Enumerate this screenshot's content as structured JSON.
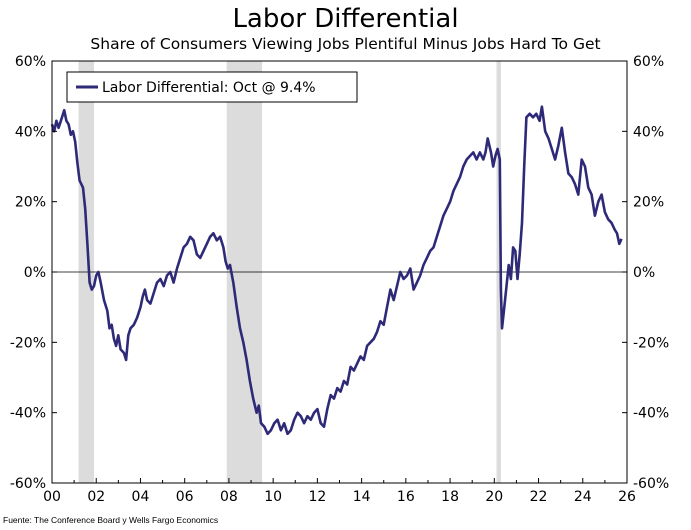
{
  "chart_data": {
    "type": "line",
    "title": "Labor Differential",
    "subtitle": "Share of Consumers Viewing Jobs Plentiful Minus Jobs Hard To Get",
    "x_tick_labels": [
      "00",
      "02",
      "04",
      "06",
      "08",
      "10",
      "12",
      "14",
      "16",
      "18",
      "20",
      "22",
      "24",
      "26"
    ],
    "x_range": [
      2000,
      2026
    ],
    "ylim": [
      -60,
      60
    ],
    "y_ticks": [
      60,
      40,
      20,
      0,
      -20,
      -40,
      -60
    ],
    "y_tick_labels": [
      "60%",
      "40%",
      "20%",
      "0%",
      "-20%",
      "-40%",
      "-60%"
    ],
    "recessions": [
      [
        2001.2,
        2001.9
      ],
      [
        2007.9,
        2009.5
      ],
      [
        2020.1,
        2020.3
      ]
    ],
    "series": [
      {
        "name": "Labor Differential: Oct @ 9.4%",
        "color": "#2e2a78",
        "points": [
          [
            2000.0,
            42
          ],
          [
            2000.1,
            40
          ],
          [
            2000.2,
            43
          ],
          [
            2000.3,
            41
          ],
          [
            2000.45,
            44
          ],
          [
            2000.55,
            46
          ],
          [
            2000.65,
            43
          ],
          [
            2000.75,
            42
          ],
          [
            2000.85,
            39
          ],
          [
            2000.95,
            40
          ],
          [
            2001.05,
            37
          ],
          [
            2001.15,
            31
          ],
          [
            2001.25,
            26
          ],
          [
            2001.4,
            24
          ],
          [
            2001.5,
            18
          ],
          [
            2001.6,
            8
          ],
          [
            2001.7,
            -3
          ],
          [
            2001.8,
            -5
          ],
          [
            2001.9,
            -4
          ],
          [
            2002.0,
            -1
          ],
          [
            2002.1,
            0
          ],
          [
            2002.2,
            -3
          ],
          [
            2002.35,
            -8
          ],
          [
            2002.5,
            -11
          ],
          [
            2002.6,
            -16
          ],
          [
            2002.7,
            -15
          ],
          [
            2002.8,
            -19
          ],
          [
            2002.9,
            -21
          ],
          [
            2003.0,
            -18
          ],
          [
            2003.1,
            -22
          ],
          [
            2003.25,
            -23
          ],
          [
            2003.35,
            -25
          ],
          [
            2003.45,
            -18
          ],
          [
            2003.55,
            -16
          ],
          [
            2003.7,
            -15
          ],
          [
            2003.85,
            -13
          ],
          [
            2004.0,
            -10
          ],
          [
            2004.1,
            -7
          ],
          [
            2004.2,
            -5
          ],
          [
            2004.3,
            -8
          ],
          [
            2004.45,
            -9
          ],
          [
            2004.6,
            -6
          ],
          [
            2004.75,
            -3
          ],
          [
            2004.9,
            -2
          ],
          [
            2005.05,
            -4
          ],
          [
            2005.2,
            -1
          ],
          [
            2005.35,
            0
          ],
          [
            2005.5,
            -3
          ],
          [
            2005.65,
            1
          ],
          [
            2005.8,
            4
          ],
          [
            2005.95,
            7
          ],
          [
            2006.1,
            8
          ],
          [
            2006.25,
            10
          ],
          [
            2006.4,
            9
          ],
          [
            2006.55,
            5
          ],
          [
            2006.7,
            4
          ],
          [
            2006.85,
            6
          ],
          [
            2007.0,
            8
          ],
          [
            2007.15,
            10
          ],
          [
            2007.3,
            11
          ],
          [
            2007.45,
            9
          ],
          [
            2007.6,
            10
          ],
          [
            2007.75,
            7
          ],
          [
            2007.85,
            3
          ],
          [
            2007.95,
            1
          ],
          [
            2008.05,
            2
          ],
          [
            2008.2,
            -3
          ],
          [
            2008.35,
            -10
          ],
          [
            2008.5,
            -16
          ],
          [
            2008.65,
            -20
          ],
          [
            2008.8,
            -25
          ],
          [
            2008.95,
            -31
          ],
          [
            2009.1,
            -36
          ],
          [
            2009.25,
            -40
          ],
          [
            2009.35,
            -38
          ],
          [
            2009.45,
            -43
          ],
          [
            2009.6,
            -44
          ],
          [
            2009.75,
            -46
          ],
          [
            2009.9,
            -45
          ],
          [
            2010.05,
            -43
          ],
          [
            2010.2,
            -42
          ],
          [
            2010.35,
            -45
          ],
          [
            2010.5,
            -43
          ],
          [
            2010.65,
            -46
          ],
          [
            2010.8,
            -45
          ],
          [
            2010.95,
            -42
          ],
          [
            2011.1,
            -40
          ],
          [
            2011.25,
            -41
          ],
          [
            2011.4,
            -43
          ],
          [
            2011.55,
            -41
          ],
          [
            2011.7,
            -42
          ],
          [
            2011.85,
            -40
          ],
          [
            2012.0,
            -39
          ],
          [
            2012.15,
            -43
          ],
          [
            2012.3,
            -44
          ],
          [
            2012.45,
            -39
          ],
          [
            2012.6,
            -35
          ],
          [
            2012.75,
            -36
          ],
          [
            2012.9,
            -33
          ],
          [
            2013.05,
            -34
          ],
          [
            2013.2,
            -31
          ],
          [
            2013.35,
            -32
          ],
          [
            2013.5,
            -27
          ],
          [
            2013.65,
            -28
          ],
          [
            2013.8,
            -26
          ],
          [
            2013.95,
            -24
          ],
          [
            2014.1,
            -25
          ],
          [
            2014.25,
            -21
          ],
          [
            2014.4,
            -20
          ],
          [
            2014.55,
            -19
          ],
          [
            2014.7,
            -17
          ],
          [
            2014.85,
            -14
          ],
          [
            2015.0,
            -15
          ],
          [
            2015.15,
            -10
          ],
          [
            2015.3,
            -5
          ],
          [
            2015.45,
            -8
          ],
          [
            2015.6,
            -4
          ],
          [
            2015.75,
            0
          ],
          [
            2015.9,
            -2
          ],
          [
            2016.05,
            -1
          ],
          [
            2016.2,
            1
          ],
          [
            2016.35,
            -5
          ],
          [
            2016.5,
            -3
          ],
          [
            2016.65,
            -1
          ],
          [
            2016.8,
            2
          ],
          [
            2016.95,
            4
          ],
          [
            2017.1,
            6
          ],
          [
            2017.25,
            7
          ],
          [
            2017.4,
            10
          ],
          [
            2017.55,
            13
          ],
          [
            2017.7,
            16
          ],
          [
            2017.85,
            18
          ],
          [
            2018.0,
            20
          ],
          [
            2018.15,
            23
          ],
          [
            2018.3,
            25
          ],
          [
            2018.45,
            27
          ],
          [
            2018.6,
            30
          ],
          [
            2018.75,
            32
          ],
          [
            2018.9,
            33
          ],
          [
            2019.05,
            34
          ],
          [
            2019.2,
            32
          ],
          [
            2019.35,
            34
          ],
          [
            2019.5,
            32
          ],
          [
            2019.6,
            34
          ],
          [
            2019.7,
            38
          ],
          [
            2019.85,
            34
          ],
          [
            2019.95,
            30
          ],
          [
            2020.05,
            33
          ],
          [
            2020.15,
            35
          ],
          [
            2020.25,
            32
          ],
          [
            2020.3,
            -5
          ],
          [
            2020.35,
            -16
          ],
          [
            2020.45,
            -10
          ],
          [
            2020.55,
            -4
          ],
          [
            2020.65,
            2
          ],
          [
            2020.75,
            -2
          ],
          [
            2020.85,
            7
          ],
          [
            2020.95,
            6
          ],
          [
            2021.05,
            -2
          ],
          [
            2021.15,
            5
          ],
          [
            2021.25,
            14
          ],
          [
            2021.35,
            30
          ],
          [
            2021.45,
            44
          ],
          [
            2021.6,
            45
          ],
          [
            2021.75,
            44
          ],
          [
            2021.9,
            45
          ],
          [
            2022.05,
            43
          ],
          [
            2022.15,
            47
          ],
          [
            2022.3,
            40
          ],
          [
            2022.45,
            38
          ],
          [
            2022.6,
            35
          ],
          [
            2022.75,
            32
          ],
          [
            2022.9,
            36
          ],
          [
            2023.05,
            41
          ],
          [
            2023.2,
            34
          ],
          [
            2023.35,
            28
          ],
          [
            2023.5,
            27
          ],
          [
            2023.65,
            25
          ],
          [
            2023.8,
            22
          ],
          [
            2023.95,
            32
          ],
          [
            2024.1,
            30
          ],
          [
            2024.25,
            24
          ],
          [
            2024.4,
            22
          ],
          [
            2024.55,
            16
          ],
          [
            2024.7,
            20
          ],
          [
            2024.85,
            22
          ],
          [
            2025.0,
            17
          ],
          [
            2025.15,
            15
          ],
          [
            2025.3,
            14
          ],
          [
            2025.45,
            12
          ],
          [
            2025.55,
            11
          ],
          [
            2025.65,
            8
          ],
          [
            2025.75,
            9.4
          ]
        ]
      }
    ],
    "source": "Fuente: The Conference Board y Wells Fargo Economics"
  }
}
